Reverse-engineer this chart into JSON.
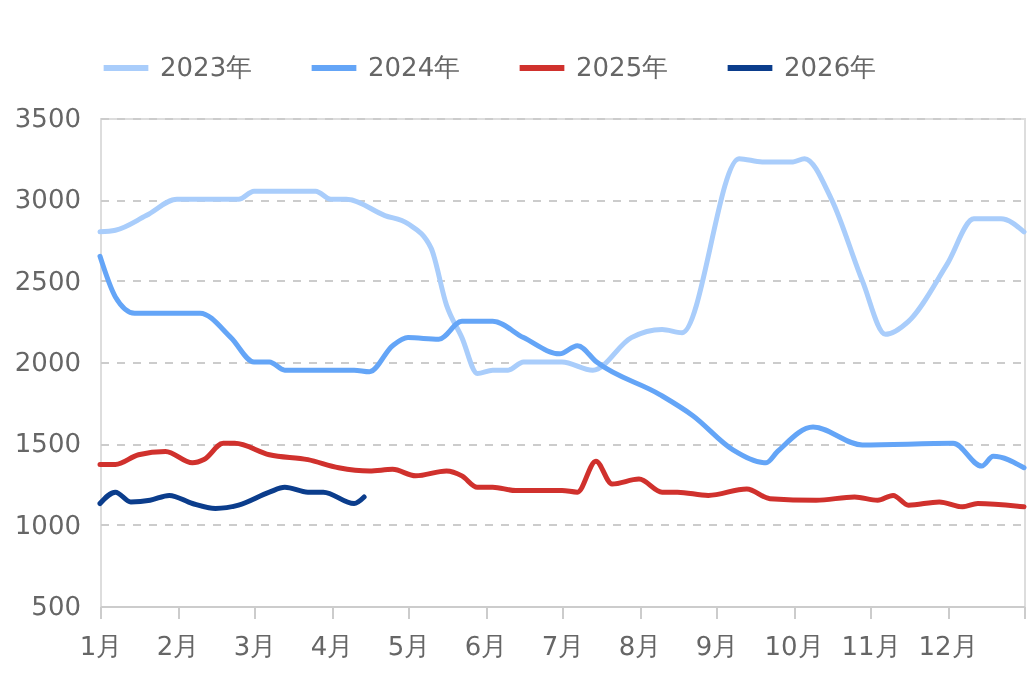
{
  "chart_data": {
    "type": "line",
    "xlim": [
      1,
      13
    ],
    "xticks": [
      {
        "value": 1,
        "label": "1月"
      },
      {
        "value": 2,
        "label": "2月"
      },
      {
        "value": 3,
        "label": "3月"
      },
      {
        "value": 4,
        "label": "4月"
      },
      {
        "value": 5,
        "label": "5月"
      },
      {
        "value": 6,
        "label": "6月"
      },
      {
        "value": 7,
        "label": "7月"
      },
      {
        "value": 8,
        "label": "8月"
      },
      {
        "value": 9,
        "label": "9月"
      },
      {
        "value": 10,
        "label": "10月"
      },
      {
        "value": 11,
        "label": "11月"
      },
      {
        "value": 12,
        "label": "12月"
      },
      {
        "value": 13,
        "label": null
      }
    ],
    "ylim": [
      500,
      3500
    ],
    "yticks": [
      500,
      1000,
      1500,
      2000,
      2500,
      3000,
      3500
    ],
    "grid": "y",
    "legend": "top",
    "line_style": "solid",
    "series": [
      {
        "name": "2023年",
        "color": "#a9cdfb",
        "x": [
          1.0,
          1.2,
          1.6,
          2.0,
          2.8,
          3.0,
          3.8,
          4.0,
          4.2,
          4.7,
          5.0,
          5.3,
          5.5,
          5.7,
          5.9,
          6.1,
          6.3,
          6.5,
          7.0,
          7.4,
          7.9,
          8.3,
          8.56,
          9.3,
          9.6,
          10.0,
          10.15,
          10.5,
          10.9,
          11.2,
          11.5,
          12.0,
          12.35,
          12.7,
          13.0
        ],
        "values": [
          2800,
          2810,
          2900,
          3000,
          3000,
          3050,
          3050,
          3000,
          3000,
          2900,
          2850,
          2700,
          2350,
          2150,
          1930,
          1950,
          1950,
          2000,
          2000,
          1950,
          2150,
          2200,
          2180,
          3250,
          3230,
          3230,
          3250,
          3000,
          2500,
          2170,
          2250,
          2600,
          2880,
          2880,
          2800
        ]
      },
      {
        "name": "2024年",
        "color": "#64a5f7",
        "x": [
          1.0,
          1.2,
          1.45,
          2.0,
          2.3,
          2.7,
          3.0,
          3.2,
          3.4,
          4.0,
          4.3,
          4.5,
          4.8,
          5.0,
          5.4,
          5.7,
          6.1,
          6.5,
          6.97,
          7.2,
          7.45,
          8.27,
          8.7,
          9.22,
          9.65,
          9.8,
          10.26,
          10.9,
          12.08,
          12.45,
          12.6,
          13.0
        ],
        "values": [
          2650,
          2400,
          2300,
          2300,
          2300,
          2150,
          2000,
          2000,
          1950,
          1950,
          1950,
          1940,
          2100,
          2150,
          2140,
          2250,
          2250,
          2150,
          2050,
          2100,
          2000,
          1800,
          1670,
          1460,
          1380,
          1450,
          1600,
          1490,
          1500,
          1360,
          1420,
          1350
        ]
      },
      {
        "name": "2025年",
        "color": "#d0312d",
        "x": [
          1.0,
          1.2,
          1.5,
          1.85,
          2.2,
          2.35,
          2.6,
          2.75,
          3.2,
          3.7,
          4.1,
          4.5,
          4.8,
          5.1,
          5.5,
          5.7,
          5.9,
          6.1,
          6.4,
          7.0,
          7.2,
          7.44,
          7.65,
          8.0,
          8.3,
          8.5,
          8.9,
          9.4,
          9.7,
          10.3,
          10.8,
          11.1,
          11.3,
          11.5,
          11.9,
          12.2,
          12.4,
          13.0
        ],
        "values": [
          1370,
          1370,
          1430,
          1450,
          1380,
          1400,
          1500,
          1500,
          1430,
          1400,
          1350,
          1330,
          1340,
          1300,
          1330,
          1300,
          1230,
          1230,
          1210,
          1210,
          1200,
          1390,
          1250,
          1280,
          1200,
          1200,
          1180,
          1220,
          1160,
          1150,
          1170,
          1150,
          1180,
          1120,
          1140,
          1110,
          1130,
          1110
        ]
      },
      {
        "name": "2026年",
        "color": "#0b3d8c",
        "x": [
          1.0,
          1.2,
          1.4,
          1.65,
          1.9,
          2.2,
          2.5,
          2.8,
          3.2,
          3.4,
          3.7,
          3.9,
          4.3,
          4.43
        ],
        "values": [
          1130,
          1200,
          1140,
          1150,
          1180,
          1130,
          1100,
          1120,
          1200,
          1230,
          1200,
          1200,
          1130,
          1170
        ]
      }
    ]
  }
}
